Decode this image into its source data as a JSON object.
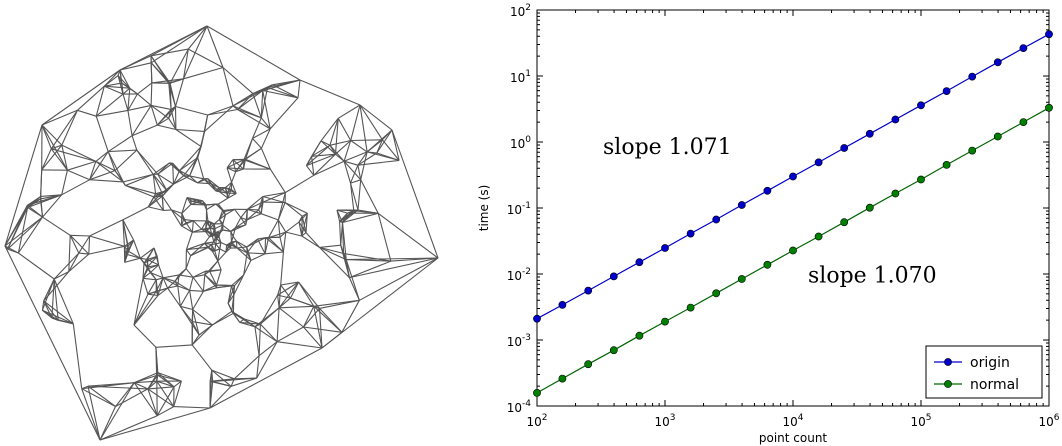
{
  "chart_data": [
    {
      "type": "diagram",
      "description_visible": "",
      "colors": {
        "edge": "#555555"
      }
    },
    {
      "type": "line",
      "xlabel": "point count",
      "ylabel": "time (s)",
      "xscale": "log",
      "yscale": "log",
      "xlim": [
        100,
        1000000
      ],
      "ylim": [
        0.0001,
        100
      ],
      "x_ticks": [
        {
          "base": "10",
          "exp": "2",
          "value": 100
        },
        {
          "base": "10",
          "exp": "3",
          "value": 1000
        },
        {
          "base": "10",
          "exp": "4",
          "value": 10000
        },
        {
          "base": "10",
          "exp": "5",
          "value": 100000
        },
        {
          "base": "10",
          "exp": "6",
          "value": 1000000
        }
      ],
      "y_ticks": [
        {
          "base": "10",
          "exp": "-4",
          "value": 0.0001
        },
        {
          "base": "10",
          "exp": "-3",
          "value": 0.001
        },
        {
          "base": "10",
          "exp": "-2",
          "value": 0.01
        },
        {
          "base": "10",
          "exp": "-1",
          "value": 0.1
        },
        {
          "base": "10",
          "exp": "0",
          "value": 1
        },
        {
          "base": "10",
          "exp": "1",
          "value": 10
        },
        {
          "base": "10",
          "exp": "2",
          "value": 100
        }
      ],
      "x": [
        100,
        158,
        251,
        398,
        631,
        1000,
        1585,
        2512,
        3981,
        6310,
        10000,
        15849,
        25119,
        39811,
        63096,
        100000,
        158489,
        251189,
        398107,
        630957,
        1000000
      ],
      "series": [
        {
          "name": "origin",
          "color": "#0000cc",
          "values": [
            0.0021,
            0.0034,
            0.0056,
            0.0092,
            0.0151,
            0.0248,
            0.041,
            0.067,
            0.111,
            0.182,
            0.3,
            0.49,
            0.81,
            1.33,
            2.19,
            3.6,
            5.9,
            9.8,
            16.1,
            26.5,
            43.0
          ]
        },
        {
          "name": "normal",
          "color": "#006600",
          "fill": "#008000",
          "values": [
            0.000158,
            0.00026,
            0.00043,
            0.0007,
            0.00116,
            0.0019,
            0.0031,
            0.0051,
            0.0084,
            0.0138,
            0.0227,
            0.037,
            0.061,
            0.101,
            0.166,
            0.27,
            0.45,
            0.74,
            1.21,
            2.0,
            3.3
          ]
        }
      ],
      "annotations": [
        {
          "text": "slope 1.071",
          "x": 1000,
          "y": 0.5
        },
        {
          "text": "slope 1.070",
          "x": 10000,
          "y": 0.0085
        }
      ],
      "legend": "lower-right",
      "grid": false
    }
  ]
}
